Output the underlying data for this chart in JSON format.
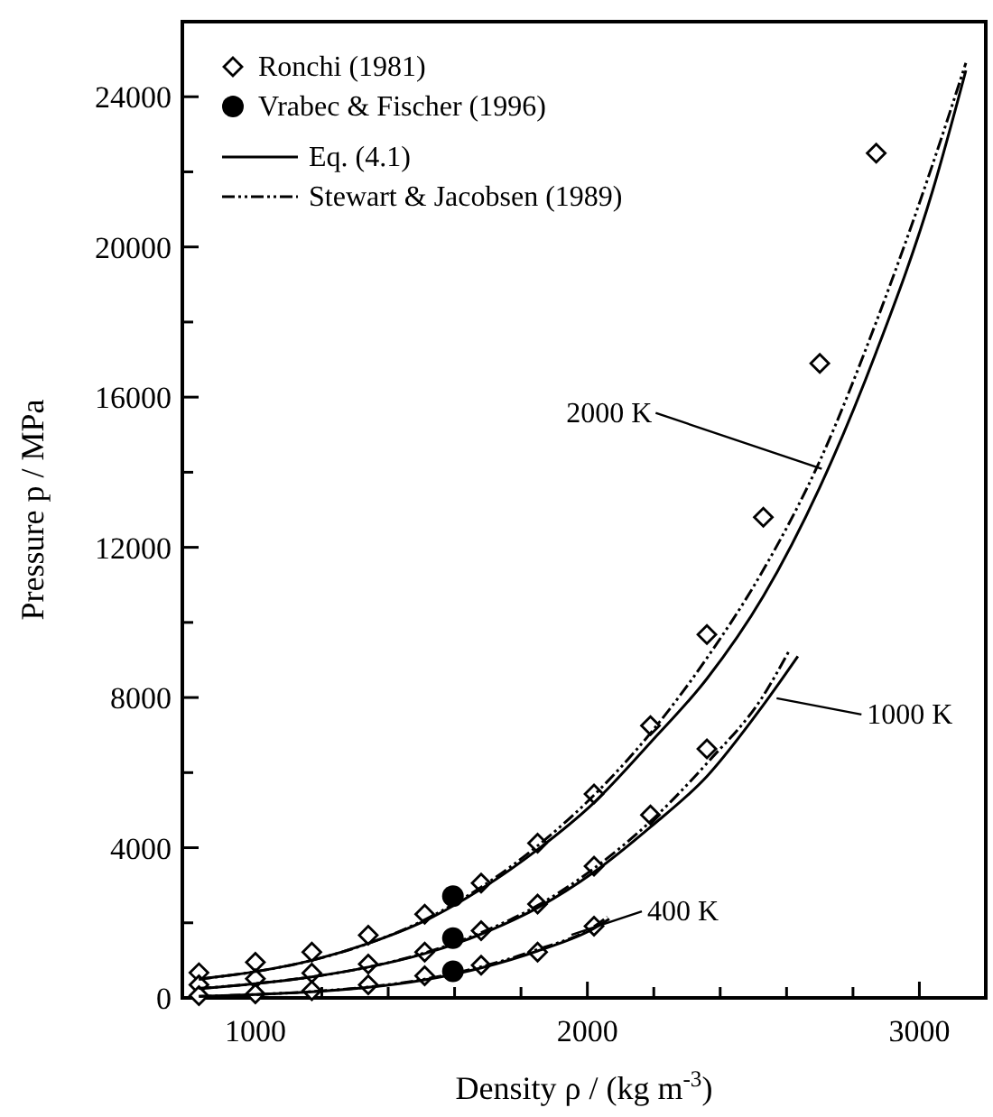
{
  "chart_data": {
    "type": "line",
    "xlabel": "Density ρ / (kg m$^{-3}$)",
    "ylabel": "Pressure p / MPa",
    "xlim": [
      780,
      3200
    ],
    "ylim": [
      0,
      26000
    ],
    "xticks": [
      1000,
      {
        "value": 1200,
        "label": null
      },
      {
        "value": 1400,
        "label": null
      },
      {
        "value": 1600,
        "label": null
      },
      {
        "value": 1800,
        "label": null
      },
      2000,
      {
        "value": 2200,
        "label": null
      },
      {
        "value": 2400,
        "label": null
      },
      {
        "value": 2600,
        "label": null
      },
      {
        "value": 2800,
        "label": null
      },
      3000
    ],
    "yticks": [
      0,
      {
        "value": 2000,
        "label": null
      },
      4000,
      {
        "value": 6000,
        "label": null
      },
      8000,
      {
        "value": 10000,
        "label": null
      },
      12000,
      {
        "value": 14000,
        "label": null
      },
      16000,
      {
        "value": 18000,
        "label": null
      },
      20000,
      {
        "value": 22000,
        "label": null
      },
      24000
    ],
    "grid": false,
    "legend": "top left",
    "series": [
      {
        "name": "Ronchi (1981)",
        "type": "scatter",
        "marker": "diamond",
        "color": "#000000",
        "x": [
          830,
          1000,
          1170,
          1340,
          1510,
          1680,
          1850,
          2020,
          2190,
          2360,
          2530,
          2700,
          2870,
          830,
          1000,
          1170,
          1340,
          1510,
          1680,
          1850,
          2020,
          2190,
          2360,
          830,
          1000,
          1170,
          1340,
          1510,
          1680,
          1850,
          2020
        ],
        "values": [
          670,
          950,
          1220,
          1670,
          2230,
          3060,
          4120,
          5430,
          7250,
          9680,
          12800,
          16900,
          22500,
          350,
          510,
          660,
          900,
          1220,
          1790,
          2500,
          3510,
          4870,
          6630,
          60,
          110,
          190,
          350,
          590,
          870,
          1220,
          1910
        ]
      },
      {
        "name": "Vrabec & Fischer (1996)",
        "type": "scatter",
        "marker": "circle",
        "color": "#000000",
        "x": [
          1595,
          1595,
          1595
        ],
        "values": [
          2710,
          1590,
          710
        ]
      },
      {
        "name": "Eq. (4.1)",
        "line_style": "solid",
        "color": "#000000",
        "x": [
          830,
          1000,
          1170,
          1340,
          1510,
          1680,
          1850,
          2020,
          2190,
          2360,
          2530,
          2700,
          2870,
          3040,
          3140
        ],
        "values": [
          500,
          700,
          1000,
          1450,
          2050,
          2900,
          3950,
          5200,
          6800,
          8500,
          10700,
          13600,
          17200,
          21500,
          24700
        ]
      },
      {
        "name": "Stewart & Jacobsen (1989)",
        "line_style": "dashed",
        "color": "#000000",
        "x": [
          830,
          1000,
          1170,
          1340,
          1510,
          1680,
          1850,
          2020,
          2190,
          2360,
          2530,
          2700,
          2870,
          3040,
          3140
        ],
        "values": [
          500,
          700,
          1000,
          1450,
          2080,
          2950,
          4050,
          5400,
          7050,
          9050,
          11400,
          14300,
          18000,
          22200,
          24900
        ]
      },
      {
        "line_style": "solid",
        "color": "#000000",
        "x": [
          830,
          1000,
          1170,
          1340,
          1510,
          1680,
          1850,
          2020,
          2190,
          2360,
          2530,
          2634
        ],
        "values": [
          250,
          380,
          560,
          820,
          1180,
          1700,
          2400,
          3350,
          4550,
          5900,
          7800,
          9100
        ]
      },
      {
        "line_style": "dashed",
        "color": "#000000",
        "x": [
          830,
          1000,
          1170,
          1340,
          1510,
          1680,
          1850,
          2020,
          2190,
          2360,
          2530,
          2608
        ],
        "values": [
          250,
          380,
          560,
          820,
          1200,
          1740,
          2460,
          3450,
          4700,
          6250,
          8050,
          9250
        ]
      },
      {
        "line_style": "solid",
        "color": "#000000",
        "x": [
          830,
          1000,
          1170,
          1340,
          1510,
          1680,
          1850,
          2020,
          2066
        ],
        "values": [
          40,
          90,
          160,
          280,
          480,
          800,
          1250,
          1850,
          2100
        ]
      },
      {
        "line_style": "dashed",
        "color": "#000000",
        "x": [
          830,
          1000,
          1170,
          1340,
          1510,
          1680,
          1850,
          2020,
          2060
        ],
        "values": [
          40,
          90,
          170,
          290,
          500,
          830,
          1290,
          1900,
          2160
        ]
      }
    ],
    "annotations": [
      {
        "text": "2000 K",
        "x": 2706,
        "y": 14090
      },
      {
        "text": "1000 K",
        "x": 2570,
        "y": 7980
      },
      {
        "text": "400 K",
        "x": 1952,
        "y": 1680
      }
    ]
  }
}
